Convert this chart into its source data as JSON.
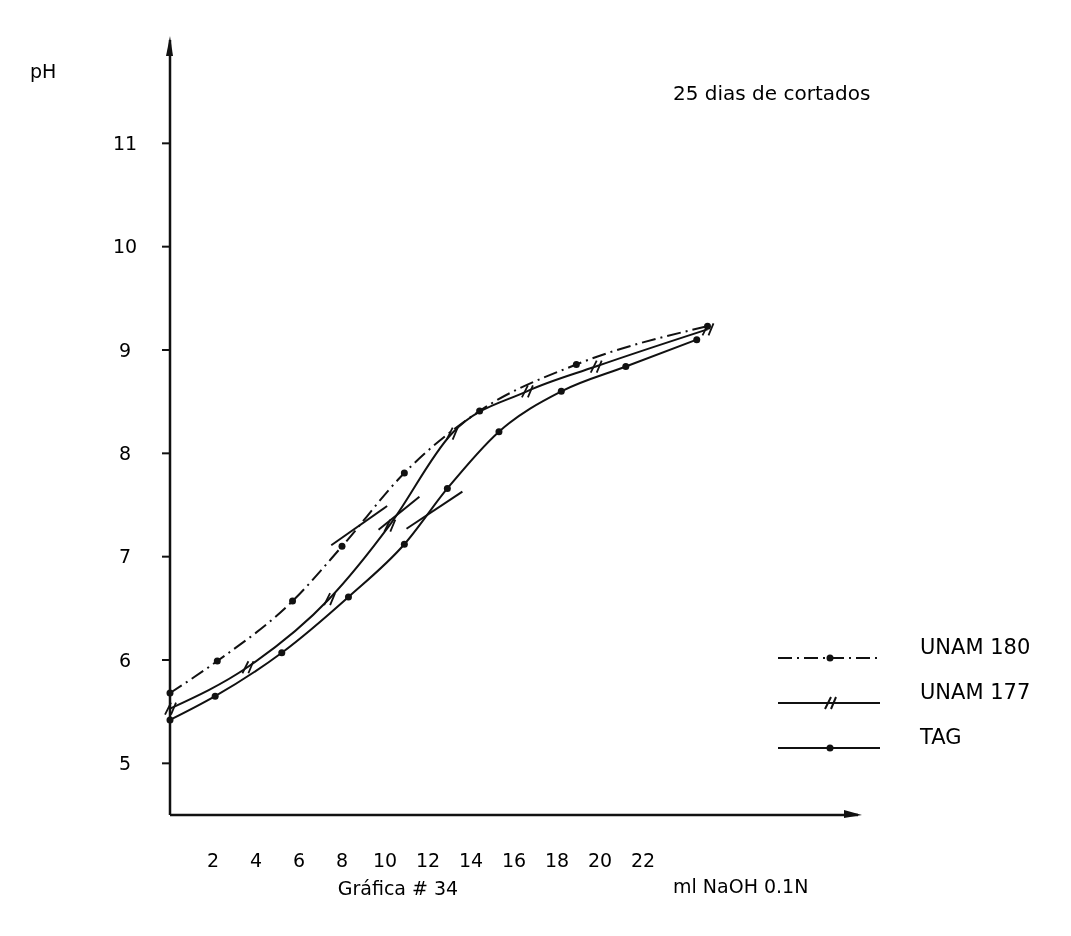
{
  "chart_data": {
    "type": "line",
    "title": "25 dias de cortados",
    "xlabel": "ml NaOH  0.1N",
    "ylabel": "pH",
    "annotations": [
      "Gráfica # 34"
    ],
    "xlim": [
      0,
      32
    ],
    "xticks": [
      2,
      4,
      6,
      8,
      10,
      12,
      14,
      16,
      18,
      20,
      22
    ],
    "ylim": [
      4.5,
      12
    ],
    "yticks": [
      5,
      6,
      7,
      8,
      9,
      10,
      11
    ],
    "grid": false,
    "legend": "bottom right",
    "series": [
      {
        "name": "UNAM 180",
        "color": "#111111",
        "marker": "circle",
        "line_style": "dashed",
        "x": [
          0,
          2.2,
          5.7,
          8.0,
          10.9,
          14.4,
          18.9,
          25
        ],
        "values": [
          5.68,
          5.99,
          6.57,
          7.1,
          7.81,
          8.41,
          8.86,
          9.23
        ]
      },
      {
        "name": "UNAM 177",
        "color": "#111111",
        "marker": "cross",
        "line_style": "solid",
        "x": [
          0,
          3.6,
          7.4,
          10.2,
          13.1,
          16.6,
          19.8,
          25
        ],
        "values": [
          5.53,
          5.93,
          6.59,
          7.3,
          8.19,
          8.6,
          8.84,
          9.2
        ]
      },
      {
        "name": "TAG",
        "color": "#111111",
        "marker": "circle",
        "line_style": "solid",
        "x": [
          0,
          2.1,
          5.2,
          8.3,
          10.9,
          12.9,
          15.3,
          18.2,
          21.2,
          24.5
        ],
        "values": [
          5.42,
          5.65,
          6.07,
          6.61,
          7.12,
          7.66,
          8.21,
          8.6,
          8.84,
          9.1
        ]
      },
      {
        "color": "#111111",
        "marker": "none",
        "line_style": "solid",
        "x": [
          7.5,
          10.1
        ],
        "values": [
          7.11,
          7.49
        ]
      },
      {
        "color": "#111111",
        "marker": "none",
        "line_style": "solid",
        "x": [
          9.7,
          11.6
        ],
        "values": [
          7.26,
          7.58
        ]
      },
      {
        "color": "#111111",
        "marker": "none",
        "line_style": "solid",
        "x": [
          11.0,
          13.6
        ],
        "values": [
          7.27,
          7.63
        ]
      }
    ]
  }
}
